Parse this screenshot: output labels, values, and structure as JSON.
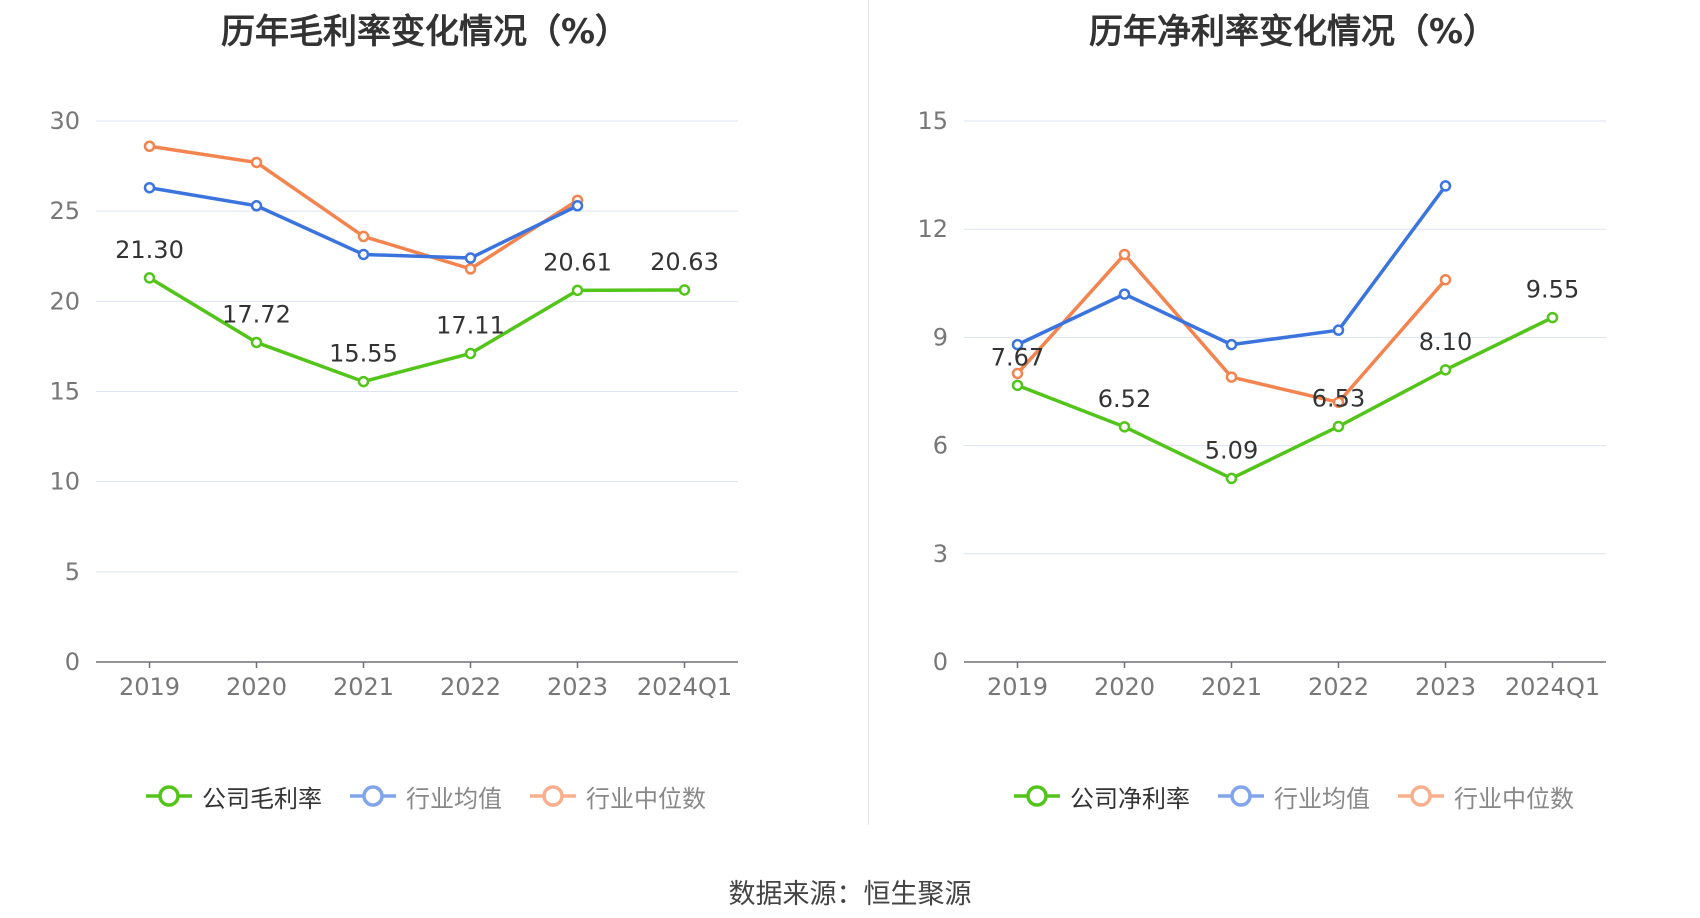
{
  "source_text": "数据来源：恒生聚源",
  "chart_data": [
    {
      "type": "line",
      "title": "历年毛利率变化情况（%）",
      "categories": [
        "2019",
        "2020",
        "2021",
        "2022",
        "2023",
        "2024Q1"
      ],
      "ylim": [
        0,
        30
      ],
      "yticks": [
        0,
        5,
        10,
        15,
        20,
        25,
        30
      ],
      "grid": true,
      "legend_position": "bottom",
      "series": [
        {
          "name": "公司毛利率",
          "color": "#52c41a",
          "values": [
            21.3,
            17.72,
            15.55,
            17.11,
            20.61,
            20.63
          ],
          "labels": [
            "21.30",
            "17.72",
            "15.55",
            "17.11",
            "20.61",
            "20.63"
          ]
        },
        {
          "name": "行业均值",
          "color": "#3b74de",
          "values": [
            26.3,
            25.3,
            22.6,
            22.4,
            25.3,
            null
          ]
        },
        {
          "name": "行业中位数",
          "color": "#f4844f",
          "values": [
            28.6,
            27.7,
            23.6,
            21.8,
            25.6,
            null
          ]
        }
      ]
    },
    {
      "type": "line",
      "title": "历年净利率变化情况（%）",
      "categories": [
        "2019",
        "2020",
        "2021",
        "2022",
        "2023",
        "2024Q1"
      ],
      "ylim": [
        0,
        15
      ],
      "yticks": [
        0,
        3,
        6,
        9,
        12,
        15
      ],
      "grid": true,
      "legend_position": "bottom",
      "series": [
        {
          "name": "公司净利率",
          "color": "#52c41a",
          "values": [
            7.67,
            6.52,
            5.09,
            6.53,
            8.1,
            9.55
          ],
          "labels": [
            "7.67",
            "6.52",
            "5.09",
            "6.53",
            "8.10",
            "9.55"
          ]
        },
        {
          "name": "行业均值",
          "color": "#3b74de",
          "values": [
            8.8,
            10.2,
            8.8,
            9.2,
            13.2,
            null
          ]
        },
        {
          "name": "行业中位数",
          "color": "#f4844f",
          "values": [
            8.0,
            11.3,
            7.9,
            7.2,
            10.6,
            null
          ]
        }
      ]
    }
  ]
}
